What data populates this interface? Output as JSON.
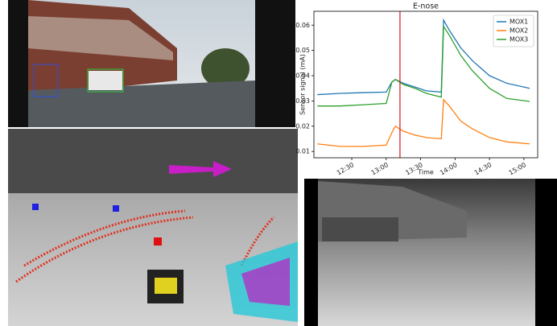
{
  "chart_data": {
    "type": "line",
    "title": "E-nose",
    "x_label": "Time",
    "y_label": "Sensor signal (mA)",
    "x": [
      720,
      740,
      760,
      780,
      785,
      788,
      795,
      805,
      815,
      828,
      830,
      835,
      845,
      855,
      870,
      885,
      905
    ],
    "series": [
      {
        "name": "MOX1",
        "color": "#1f77b4",
        "values": [
          0.0325,
          0.033,
          0.0333,
          0.0335,
          0.0375,
          0.0385,
          0.037,
          0.0355,
          0.034,
          0.0335,
          0.062,
          0.058,
          0.051,
          0.046,
          0.04,
          0.037,
          0.035
        ]
      },
      {
        "name": "MOX2",
        "color": "#ff7f0e",
        "values": [
          0.013,
          0.012,
          0.012,
          0.0125,
          0.0175,
          0.02,
          0.018,
          0.0165,
          0.0155,
          0.015,
          0.0305,
          0.028,
          0.022,
          0.019,
          0.0155,
          0.0138,
          0.013
        ]
      },
      {
        "name": "MOX3",
        "color": "#2ca02c",
        "values": [
          0.028,
          0.028,
          0.0285,
          0.029,
          0.0375,
          0.0385,
          0.0365,
          0.035,
          0.033,
          0.0315,
          0.0595,
          0.056,
          0.048,
          0.042,
          0.035,
          0.031,
          0.0298
        ]
      }
    ],
    "vline": {
      "x": 792,
      "color": "#d62728"
    },
    "xlim": [
      717,
      912
    ],
    "ylim": [
      0.0075,
      0.0655
    ],
    "xticks": [
      {
        "value": 750,
        "label": "12:30"
      },
      {
        "value": 780,
        "label": "13:00"
      },
      {
        "value": 810,
        "label": "13:30"
      },
      {
        "value": 840,
        "label": "14:00"
      },
      {
        "value": 870,
        "label": "14:30"
      },
      {
        "value": 900,
        "label": "15:00"
      }
    ],
    "yticks": [
      0.01,
      0.02,
      0.03,
      0.04,
      0.05,
      0.06
    ],
    "legend": "upper right"
  }
}
